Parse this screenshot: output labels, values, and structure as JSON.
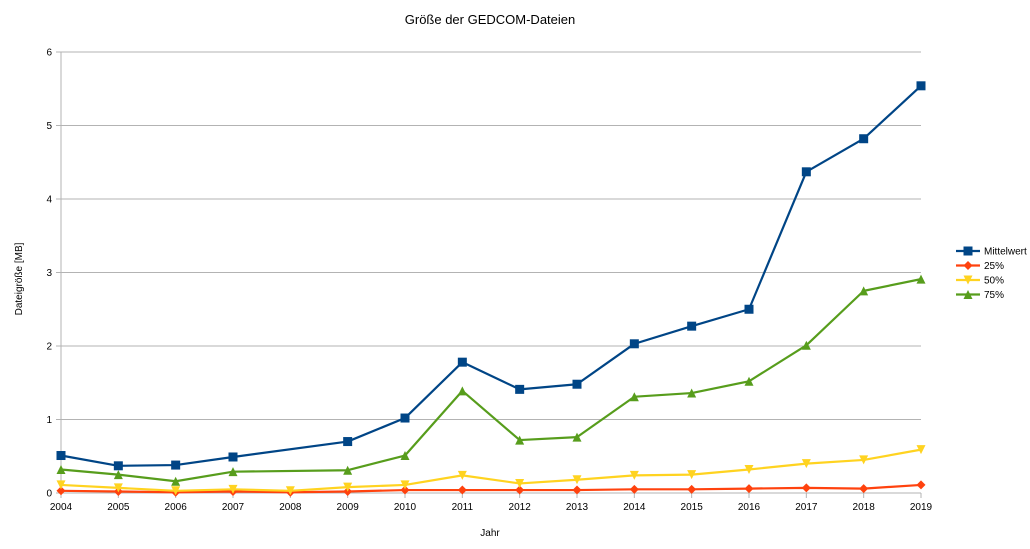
{
  "chart_data": {
    "type": "line",
    "title": "Größe der GEDCOM-Dateien",
    "xlabel": "Jahr",
    "ylabel": "Dateigröße [MB]",
    "x": [
      "2004",
      "2005",
      "2006",
      "2007",
      "2008",
      "2009",
      "2010",
      "2011",
      "2012",
      "2013",
      "2014",
      "2015",
      "2016",
      "2017",
      "2018",
      "2019"
    ],
    "ylim": [
      0,
      6
    ],
    "yticks": [
      "0",
      "1",
      "2",
      "3",
      "4",
      "5",
      "6"
    ],
    "grid": true,
    "legend_position": "right",
    "series": [
      {
        "name": "Mittelwert",
        "color": "#004586",
        "marker": "square",
        "values": [
          0.51,
          0.37,
          0.38,
          0.49,
          null,
          0.7,
          1.02,
          1.78,
          1.41,
          1.48,
          2.03,
          2.27,
          2.5,
          4.37,
          4.82,
          5.54
        ]
      },
      {
        "name": "25%",
        "color": "#ff420e",
        "marker": "diamond",
        "values": [
          0.03,
          0.02,
          0.01,
          0.02,
          0.01,
          0.02,
          0.04,
          0.04,
          0.04,
          0.04,
          0.05,
          0.05,
          0.06,
          0.07,
          0.06,
          0.11
        ]
      },
      {
        "name": "50%",
        "color": "#ffd320",
        "marker": "triangle-down",
        "values": [
          0.11,
          0.07,
          0.03,
          0.05,
          0.03,
          0.08,
          0.11,
          0.24,
          0.13,
          0.18,
          0.24,
          0.25,
          0.32,
          0.4,
          0.45,
          0.59
        ]
      },
      {
        "name": "75%",
        "color": "#579d1c",
        "marker": "triangle-up",
        "values": [
          0.32,
          0.25,
          0.16,
          0.29,
          null,
          0.31,
          0.51,
          1.39,
          0.72,
          0.76,
          1.31,
          1.36,
          1.52,
          2.01,
          2.75,
          2.91
        ]
      }
    ]
  }
}
